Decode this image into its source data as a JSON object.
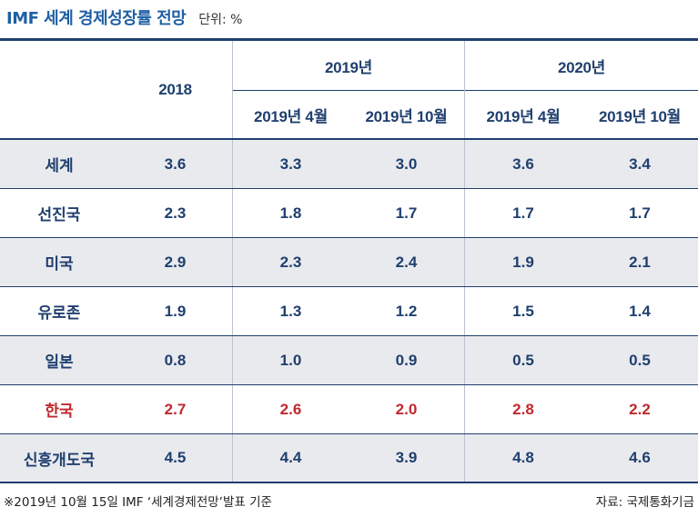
{
  "title": "IMF 세계 경제성장률 전망",
  "unit": "단위: %",
  "header": {
    "col2018": "2018",
    "group2019": "2019년",
    "group2020": "2020년",
    "sub": [
      "2019년 4월",
      "2019년 10월",
      "2019년 4월",
      "2019년 10월"
    ]
  },
  "rows": [
    {
      "label": "세계",
      "values": [
        "3.6",
        "3.3",
        "3.0",
        "3.6",
        "3.4"
      ]
    },
    {
      "label": "선진국",
      "values": [
        "2.3",
        "1.8",
        "1.7",
        "1.7",
        "1.7"
      ]
    },
    {
      "label": "미국",
      "values": [
        "2.9",
        "2.3",
        "2.4",
        "1.9",
        "2.1"
      ]
    },
    {
      "label": "유로존",
      "values": [
        "1.9",
        "1.3",
        "1.2",
        "1.5",
        "1.4"
      ]
    },
    {
      "label": "일본",
      "values": [
        "0.8",
        "1.0",
        "0.9",
        "0.5",
        "0.5"
      ]
    },
    {
      "label": "한국",
      "values": [
        "2.7",
        "2.6",
        "2.0",
        "2.8",
        "2.2"
      ]
    },
    {
      "label": "신흥개도국",
      "values": [
        "4.5",
        "4.4",
        "3.9",
        "4.8",
        "4.6"
      ]
    }
  ],
  "footnote": "※2019년 10월 15일 IMF ‘세계경제전망’발표 기준",
  "source": "자료: 국제통화기금",
  "colors": {
    "title": "#1f5fa3",
    "text": "#1f3f6e",
    "highlight": "#c0282d",
    "shade": "#e9eaee"
  }
}
